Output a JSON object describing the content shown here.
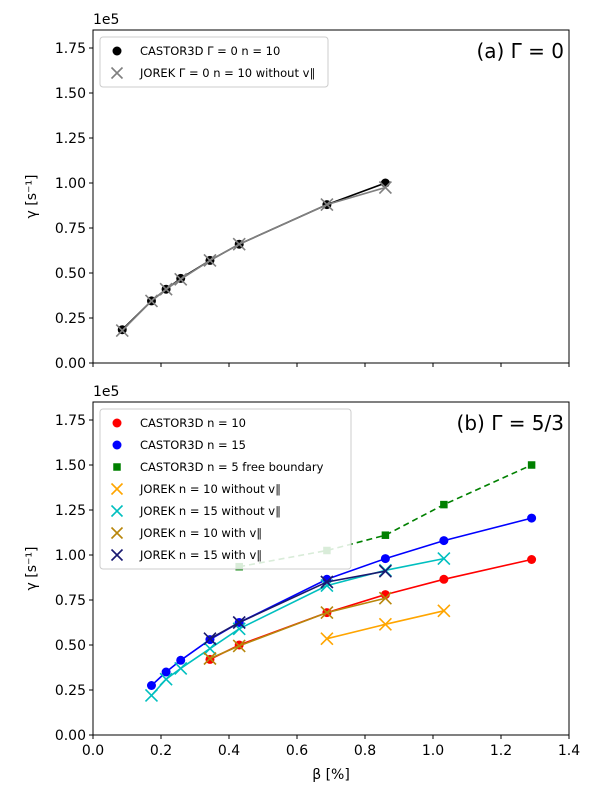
{
  "chart_data": [
    {
      "type": "line",
      "panel_label": "(a) Γ = 0",
      "xlabel": "β [%]",
      "ylabel": "γ [s⁻¹]",
      "y_offset_label": "1e5",
      "xlim": [
        0.0,
        1.4
      ],
      "ylim": [
        0,
        185000
      ],
      "x_ticks": [
        0.0,
        0.2,
        0.4,
        0.6,
        0.8,
        1.0,
        1.2,
        1.4
      ],
      "y_ticks": [
        0,
        25000,
        50000,
        75000,
        100000,
        125000,
        150000,
        175000
      ],
      "y_tick_labels": [
        "0.00",
        "0.25",
        "0.50",
        "0.75",
        "1.00",
        "1.25",
        "1.50",
        "1.75"
      ],
      "show_x_tick_labels": false,
      "legend_position": "top-left",
      "series": [
        {
          "name": "CASTOR3D Γ = 0 n = 10",
          "color": "#000000",
          "marker": "circle",
          "dashed": false,
          "x": [
            0.086,
            0.172,
            0.215,
            0.258,
            0.344,
            0.43,
            0.688,
            0.86
          ],
          "y": [
            18500,
            34500,
            41000,
            47000,
            57000,
            66000,
            88000,
            100000
          ]
        },
        {
          "name": "JOREK Γ = 0 n = 10 without v∥",
          "color": "#808080",
          "marker": "x",
          "dashed": false,
          "x": [
            0.086,
            0.172,
            0.215,
            0.258,
            0.344,
            0.43,
            0.688,
            0.86
          ],
          "y": [
            18000,
            34500,
            41000,
            46500,
            57000,
            66000,
            88000,
            97500
          ]
        }
      ]
    },
    {
      "type": "line",
      "panel_label": "(b) Γ = 5/3",
      "xlabel": "β [%]",
      "ylabel": "γ [s⁻¹]",
      "y_offset_label": "1e5",
      "xlim": [
        0.0,
        1.4
      ],
      "ylim": [
        0,
        185000
      ],
      "x_ticks": [
        0.0,
        0.2,
        0.4,
        0.6,
        0.8,
        1.0,
        1.2,
        1.4
      ],
      "x_tick_labels": [
        "0.0",
        "0.2",
        "0.4",
        "0.6",
        "0.8",
        "1.0",
        "1.2",
        "1.4"
      ],
      "y_ticks": [
        0,
        25000,
        50000,
        75000,
        100000,
        125000,
        150000,
        175000
      ],
      "y_tick_labels": [
        "0.00",
        "0.25",
        "0.50",
        "0.75",
        "1.00",
        "1.25",
        "1.50",
        "1.75"
      ],
      "show_x_tick_labels": true,
      "legend_position": "top-left",
      "series": [
        {
          "name": "CASTOR3D n = 10",
          "color": "#ff0000",
          "marker": "circle",
          "dashed": false,
          "x": [
            0.344,
            0.43,
            0.688,
            0.86,
            1.032,
            1.29
          ],
          "y": [
            42000,
            50000,
            68000,
            78000,
            86500,
            97500
          ]
        },
        {
          "name": "CASTOR3D n = 15",
          "color": "#0000ff",
          "marker": "circle",
          "dashed": false,
          "x": [
            0.172,
            0.215,
            0.258,
            0.344,
            0.43,
            0.688,
            0.86,
            1.032,
            1.29
          ],
          "y": [
            27500,
            35000,
            41500,
            53000,
            62500,
            86500,
            98000,
            108000,
            120500
          ]
        },
        {
          "name": "CASTOR3D n = 5 free boundary",
          "color": "#008000",
          "marker": "square",
          "dashed": true,
          "x": [
            0.43,
            0.688,
            0.86,
            1.032,
            1.29
          ],
          "y": [
            93500,
            102500,
            111000,
            128000,
            150000
          ]
        },
        {
          "name": "JOREK n = 10 without v∥",
          "color": "#ffa500",
          "marker": "x",
          "dashed": false,
          "x": [
            0.688,
            0.86,
            1.032
          ],
          "y": [
            53500,
            61500,
            69000
          ]
        },
        {
          "name": "JOREK n = 15 without v∥",
          "color": "#00bfbf",
          "marker": "x",
          "dashed": false,
          "x": [
            0.172,
            0.215,
            0.258,
            0.344,
            0.43,
            0.688,
            0.86,
            1.032
          ],
          "y": [
            22000,
            31000,
            37000,
            48000,
            59000,
            83000,
            91500,
            98000
          ]
        },
        {
          "name": "JOREK n = 10 with v∥",
          "color": "#b8860b",
          "marker": "x",
          "dashed": false,
          "x": [
            0.344,
            0.43,
            0.688,
            0.86
          ],
          "y": [
            42500,
            49500,
            68000,
            76000
          ]
        },
        {
          "name": "JOREK n = 15 with v∥",
          "color": "#191970",
          "marker": "x",
          "dashed": false,
          "x": [
            0.344,
            0.43,
            0.688,
            0.86
          ],
          "y": [
            53500,
            62500,
            85000,
            91000
          ]
        }
      ]
    }
  ]
}
